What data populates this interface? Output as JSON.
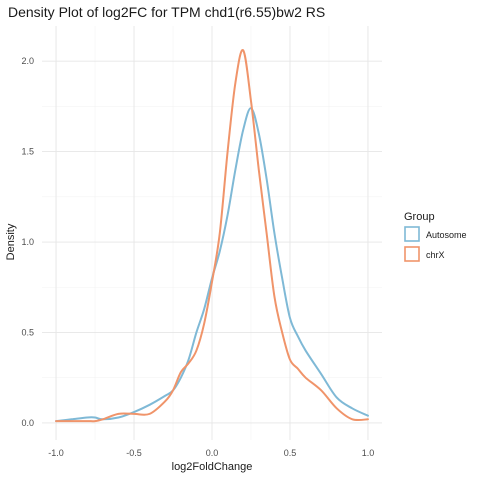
{
  "chart_data": {
    "type": "line",
    "title": "Density Plot of log2FC for TPM chd1(r6.55)bw2 RS",
    "xlabel": "log2FoldChange",
    "ylabel": "Density",
    "xlim": [
      -1.0,
      1.0
    ],
    "ylim": [
      0,
      2.1
    ],
    "x_ticks": [
      -1.0,
      -0.5,
      0.0,
      0.5,
      1.0
    ],
    "x_tick_labels": [
      "-1.0",
      "-0.5",
      "0.0",
      "0.5",
      "1.0"
    ],
    "y_ticks": [
      0.0,
      0.5,
      1.0,
      1.5,
      2.0
    ],
    "y_tick_labels": [
      "0.0",
      "0.5",
      "1.0",
      "1.5",
      "2.0"
    ],
    "grid": true,
    "legend": {
      "title": "Group",
      "position": "right"
    },
    "series": [
      {
        "name": "Autosome",
        "color": "#7fb9d6",
        "x": [
          -1.0,
          -0.9,
          -0.8,
          -0.75,
          -0.7,
          -0.6,
          -0.5,
          -0.4,
          -0.3,
          -0.25,
          -0.2,
          -0.15,
          -0.1,
          -0.05,
          0.0,
          0.05,
          0.1,
          0.15,
          0.2,
          0.25,
          0.3,
          0.35,
          0.4,
          0.45,
          0.5,
          0.55,
          0.6,
          0.7,
          0.8,
          0.9,
          1.0
        ],
        "y": [
          0.01,
          0.02,
          0.03,
          0.03,
          0.02,
          0.03,
          0.06,
          0.1,
          0.15,
          0.18,
          0.25,
          0.35,
          0.5,
          0.63,
          0.8,
          0.95,
          1.15,
          1.4,
          1.62,
          1.74,
          1.6,
          1.35,
          1.05,
          0.8,
          0.58,
          0.48,
          0.4,
          0.27,
          0.14,
          0.08,
          0.04
        ]
      },
      {
        "name": "chrX",
        "color": "#f0946a",
        "x": [
          -1.0,
          -0.9,
          -0.8,
          -0.75,
          -0.7,
          -0.6,
          -0.5,
          -0.4,
          -0.3,
          -0.25,
          -0.2,
          -0.15,
          -0.1,
          -0.05,
          0.0,
          0.05,
          0.1,
          0.15,
          0.2,
          0.25,
          0.3,
          0.35,
          0.4,
          0.45,
          0.5,
          0.55,
          0.6,
          0.7,
          0.8,
          0.9,
          1.0
        ],
        "y": [
          0.01,
          0.01,
          0.01,
          0.01,
          0.02,
          0.05,
          0.05,
          0.05,
          0.12,
          0.18,
          0.28,
          0.33,
          0.4,
          0.55,
          0.78,
          1.05,
          1.5,
          1.88,
          2.06,
          1.78,
          1.4,
          1.05,
          0.7,
          0.5,
          0.35,
          0.3,
          0.25,
          0.18,
          0.08,
          0.02,
          0.02
        ]
      }
    ]
  }
}
